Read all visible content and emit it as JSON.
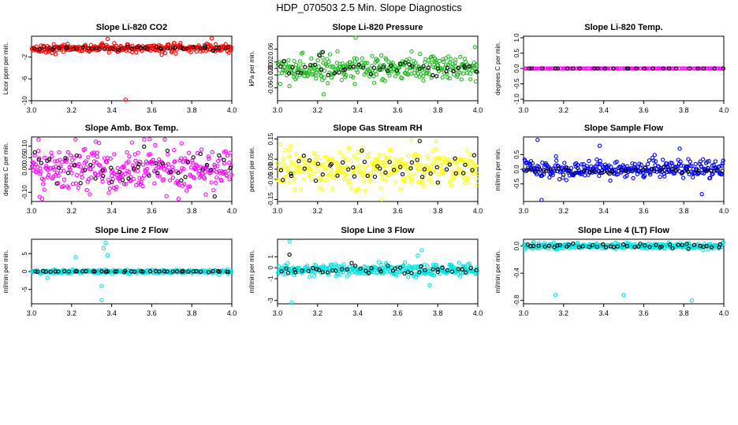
{
  "figure_title": "HDP_070503  2.5 Min. Slope Diagnostics",
  "chart_data": [
    {
      "type": "scatter",
      "title": "Slope Li-820 CO2",
      "ylabel": "Licor ppm per min.",
      "xlabel": "",
      "xlim": [
        3.0,
        4.0
      ],
      "ylim": [
        -10,
        1.8
      ],
      "xticks": [
        "3.0",
        "3.2",
        "3.4",
        "3.6",
        "3.8",
        "4.0"
      ],
      "yticks": [
        {
          "v": -10,
          "label": "-10"
        },
        {
          "v": -6,
          "label": "-6"
        },
        {
          "v": -2,
          "label": "-2"
        }
      ],
      "series": [
        {
          "name": "all",
          "color": "#ff0000",
          "n": 300,
          "center": -0.4,
          "spread": 0.35,
          "outliers": [
            {
              "x": 3.47,
              "y": -9.8
            },
            {
              "x": 3.12,
              "y": -1.5
            },
            {
              "x": 3.72,
              "y": -1.4
            },
            {
              "x": 3.9,
              "y": 1.4
            },
            {
              "x": 3.38,
              "y": 1.3
            },
            {
              "x": 3.65,
              "y": -1.6
            }
          ]
        },
        {
          "name": "selected",
          "color": "#000000",
          "n": 45,
          "center": -0.4,
          "spread": 0.15,
          "outliers": []
        }
      ]
    },
    {
      "type": "scatter",
      "title": "Slope Li-820 Pressure",
      "ylabel": "kPa per min.",
      "xlabel": "",
      "xlim": [
        3.0,
        4.0
      ],
      "ylim": [
        -0.1,
        0.1
      ],
      "xticks": [
        "3.0",
        "3.2",
        "3.4",
        "3.6",
        "3.8",
        "4.0"
      ],
      "yticks": [
        {
          "v": -0.06,
          "label": "-0.06"
        },
        {
          "v": -0.02,
          "label": "-0.02"
        },
        {
          "v": 0.0,
          "label": "0.00"
        },
        {
          "v": 0.02,
          "label": "0.02"
        },
        {
          "v": 0.06,
          "label": "0.06"
        }
      ],
      "series": [
        {
          "name": "all",
          "color": "#22bb22",
          "n": 320,
          "center": 0.0,
          "spread": 0.018,
          "outliers": [
            {
              "x": 3.39,
              "y": 0.095
            },
            {
              "x": 3.22,
              "y": 0.05
            },
            {
              "x": 3.23,
              "y": -0.08
            },
            {
              "x": 3.06,
              "y": -0.055
            },
            {
              "x": 3.99,
              "y": -0.04
            }
          ]
        },
        {
          "name": "selected",
          "color": "#000000",
          "n": 45,
          "center": 0.0,
          "spread": 0.012,
          "outliers": [
            {
              "x": 3.21,
              "y": 0.04
            }
          ]
        }
      ]
    },
    {
      "type": "scatter",
      "title": "Slope Li-820 Temp.",
      "ylabel": "degrees C per min.",
      "xlabel": "",
      "xlim": [
        3.0,
        4.0
      ],
      "ylim": [
        -1.05,
        1.05
      ],
      "xticks": [
        "3.0",
        "3.2",
        "3.4",
        "3.6",
        "3.8",
        "4.0"
      ],
      "yticks": [
        {
          "v": -1.0,
          "label": "-1.0"
        },
        {
          "v": -0.5,
          "label": "-0.5"
        },
        {
          "v": 0.0,
          "label": "0.0"
        },
        {
          "v": 0.5,
          "label": "0.5"
        },
        {
          "v": 1.0,
          "label": "1.0"
        }
      ],
      "series": [
        {
          "name": "all",
          "color": "#ff00ff",
          "n": 140,
          "center": 0.0,
          "spread": 0.0,
          "outliers": []
        },
        {
          "name": "selected",
          "color": "#000000",
          "n": 25,
          "center": 0.0,
          "spread": 0.0,
          "outliers": []
        }
      ]
    },
    {
      "type": "scatter",
      "title": "Slope Amb. Box Temp.",
      "ylabel": "degrees C per min.",
      "xlabel": "",
      "xlim": [
        3.0,
        4.0
      ],
      "ylim": [
        -0.14,
        0.14
      ],
      "xticks": [
        "3.0",
        "3.2",
        "3.4",
        "3.6",
        "3.8",
        "4.0"
      ],
      "yticks": [
        {
          "v": -0.1,
          "label": "-0.10"
        },
        {
          "v": 0.0,
          "label": "0.00"
        },
        {
          "v": 0.05,
          "label": "0.05"
        },
        {
          "v": 0.1,
          "label": "0.10"
        }
      ],
      "series": [
        {
          "name": "all",
          "color": "#ff00ff",
          "n": 320,
          "center": 0.0,
          "spread": 0.05,
          "outliers": [
            {
              "x": 3.59,
              "y": 0.13
            },
            {
              "x": 3.32,
              "y": 0.12
            },
            {
              "x": 3.04,
              "y": -0.12
            },
            {
              "x": 3.87,
              "y": -0.11
            }
          ]
        },
        {
          "name": "selected",
          "color": "#000000",
          "n": 45,
          "center": 0.0,
          "spread": 0.04,
          "outliers": []
        }
      ]
    },
    {
      "type": "scatter",
      "title": "Slope Gas Stream RH",
      "ylabel": "percent per min.",
      "xlabel": "",
      "xlim": [
        3.0,
        4.0
      ],
      "ylim": [
        -0.16,
        0.16
      ],
      "xticks": [
        "3.0",
        "3.2",
        "3.4",
        "3.6",
        "3.8",
        "4.0"
      ],
      "yticks": [
        {
          "v": -0.15,
          "label": "-0.15"
        },
        {
          "v": -0.05,
          "label": "-0.05"
        },
        {
          "v": 0.0,
          "label": "0.00"
        },
        {
          "v": 0.05,
          "label": "0.05"
        },
        {
          "v": 0.15,
          "label": "0.15"
        }
      ],
      "series": [
        {
          "name": "all",
          "color": "#ffff00",
          "n": 320,
          "center": 0.0,
          "spread": 0.045,
          "outliers": [
            {
              "x": 3.52,
              "y": -0.15
            },
            {
              "x": 3.71,
              "y": 0.14
            }
          ]
        },
        {
          "name": "selected",
          "color": "#000000",
          "n": 45,
          "center": 0.0,
          "spread": 0.035,
          "outliers": [
            {
              "x": 3.71,
              "y": 0.14
            }
          ]
        }
      ]
    },
    {
      "type": "scatter",
      "title": "Slope Sample Flow",
      "ylabel": "ml/min per min.",
      "xlabel": "",
      "xlim": [
        3.0,
        4.0
      ],
      "ylim": [
        -1.1,
        1.1
      ],
      "xticks": [
        "3.0",
        "3.2",
        "3.4",
        "3.6",
        "3.8",
        "4.0"
      ],
      "yticks": [
        {
          "v": -0.5,
          "label": "-0.5"
        },
        {
          "v": 0.0,
          "label": "0.0"
        },
        {
          "v": 0.5,
          "label": "0.5"
        }
      ],
      "series": [
        {
          "name": "all",
          "color": "#0000ff",
          "n": 320,
          "center": 0.0,
          "spread": 0.15,
          "outliers": [
            {
              "x": 3.07,
              "y": 1.0
            },
            {
              "x": 3.09,
              "y": -1.05
            },
            {
              "x": 3.38,
              "y": 0.8
            },
            {
              "x": 3.78,
              "y": 0.7
            },
            {
              "x": 3.89,
              "y": -0.85
            }
          ]
        },
        {
          "name": "selected",
          "color": "#000000",
          "n": 45,
          "center": -0.05,
          "spread": 0.06,
          "outliers": []
        }
      ]
    },
    {
      "type": "scatter",
      "title": "Slope Line 2 Flow",
      "ylabel": "ml/min per min.",
      "xlabel": "",
      "xlim": [
        3.0,
        4.0
      ],
      "ylim": [
        -9,
        9
      ],
      "xticks": [
        "3.0",
        "3.2",
        "3.4",
        "3.6",
        "3.8",
        "4.0"
      ],
      "yticks": [
        {
          "v": -5,
          "label": "-5"
        },
        {
          "v": 0,
          "label": "0"
        },
        {
          "v": 5,
          "label": "5"
        }
      ],
      "series": [
        {
          "name": "all",
          "color": "#00e5e5",
          "n": 300,
          "center": 0.0,
          "spread": 0.25,
          "outliers": [
            {
              "x": 3.37,
              "y": 8.0
            },
            {
              "x": 3.36,
              "y": 6.5
            },
            {
              "x": 3.35,
              "y": -8.0
            },
            {
              "x": 3.38,
              "y": 4.5
            },
            {
              "x": 3.22,
              "y": 4.0
            },
            {
              "x": 3.08,
              "y": -1.8
            },
            {
              "x": 3.35,
              "y": -4.0
            }
          ]
        },
        {
          "name": "selected",
          "color": "#000000",
          "n": 45,
          "center": 0.0,
          "spread": 0.08,
          "outliers": []
        }
      ]
    },
    {
      "type": "scatter",
      "title": "Slope Line 3 Flow",
      "ylabel": "ml/min per min.",
      "xlabel": "",
      "xlim": [
        3.0,
        4.0
      ],
      "ylim": [
        -3.3,
        2.6
      ],
      "xticks": [
        "3.0",
        "3.2",
        "3.4",
        "3.6",
        "3.8",
        "4.0"
      ],
      "yticks": [
        {
          "v": -3,
          "label": "-3"
        },
        {
          "v": -1,
          "label": "-1"
        },
        {
          "v": 0,
          "label": "0"
        },
        {
          "v": 1,
          "label": "1"
        }
      ],
      "series": [
        {
          "name": "all",
          "color": "#00e5e5",
          "n": 320,
          "center": -0.2,
          "spread": 0.25,
          "outliers": [
            {
              "x": 3.06,
              "y": 2.4
            },
            {
              "x": 3.07,
              "y": -3.2
            },
            {
              "x": 3.72,
              "y": 1.6
            },
            {
              "x": 3.76,
              "y": -1.6
            },
            {
              "x": 3.7,
              "y": 1.1
            }
          ]
        },
        {
          "name": "selected",
          "color": "#000000",
          "n": 45,
          "center": -0.2,
          "spread": 0.2,
          "outliers": [
            {
              "x": 3.06,
              "y": 1.2
            }
          ]
        }
      ]
    },
    {
      "type": "scatter",
      "title": "Slope Line 4 (LT) Flow",
      "ylabel": "ml/min per min.",
      "xlabel": "",
      "xlim": [
        3.0,
        4.0
      ],
      "ylim": [
        -0.85,
        0.1
      ],
      "xticks": [
        "3.0",
        "3.2",
        "3.4",
        "3.6",
        "3.8",
        "4.0"
      ],
      "yticks": [
        {
          "v": -0.8,
          "label": "-0.8"
        },
        {
          "v": -0.4,
          "label": "-0.4"
        },
        {
          "v": 0.0,
          "label": "0.0"
        }
      ],
      "series": [
        {
          "name": "all",
          "color": "#00e5e5",
          "n": 300,
          "center": 0.0,
          "spread": 0.02,
          "outliers": [
            {
              "x": 3.16,
              "y": -0.72
            },
            {
              "x": 3.5,
              "y": -0.72
            },
            {
              "x": 3.84,
              "y": -0.8
            },
            {
              "x": 3.05,
              "y": 0.06
            }
          ]
        },
        {
          "name": "selected",
          "color": "#000000",
          "n": 45,
          "center": 0.0,
          "spread": 0.015,
          "outliers": []
        }
      ]
    }
  ]
}
